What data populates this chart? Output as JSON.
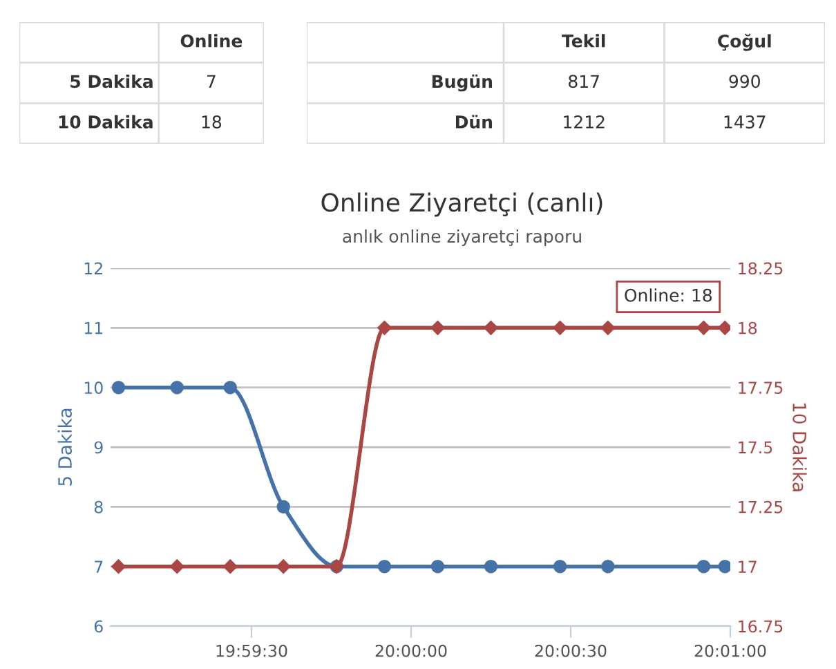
{
  "chart_data": [
    {
      "type": "heatmap",
      "categories": [
        "Online"
      ],
      "y_categories": [
        "5 Dakika",
        "10 Dakika"
      ],
      "cells": [
        [
          7
        ],
        [
          18
        ]
      ],
      "data_labels": true
    },
    {
      "type": "heatmap",
      "categories": [
        "Tekil",
        "Çoğul"
      ],
      "y_categories": [
        "Bugün",
        "Dün"
      ],
      "cells": [
        [
          817,
          990
        ],
        [
          1212,
          1437
        ]
      ],
      "data_labels": true
    },
    {
      "type": "line",
      "title": "Online Ziyaretçi (canlı)",
      "subtitle": "anlık online ziyaretçi raporu",
      "ylabel": "5 Dakika",
      "y2label": "10 Dakika",
      "x": [
        19.984722,
        19.987778,
        19.990556,
        19.993333,
        19.996111,
        19.998611,
        20.001389,
        20.004167,
        20.007778,
        20.010278,
        20.015278,
        20.016389
      ],
      "series": [
        {
          "color": "#4572a7",
          "marker": "circle",
          "values": [
            10,
            10,
            10,
            8,
            7,
            7,
            7,
            7,
            7,
            7,
            7,
            7
          ]
        },
        {
          "color": "#aa4643",
          "marker": "diamond",
          "axis": "y2",
          "values": [
            17,
            17,
            17,
            17,
            17,
            18,
            18,
            18,
            18,
            18,
            18,
            18
          ]
        }
      ],
      "xlim": [
        19.984306,
        20.016667
      ],
      "xticks": [
        {
          "value": 19.991667,
          "label": "19:59:30"
        },
        {
          "value": 20.0,
          "label": "20:00:00"
        },
        {
          "value": 20.008333,
          "label": "20:00:30"
        },
        {
          "value": 20.016667,
          "label": "20:01:00"
        }
      ],
      "ylim": [
        6,
        12
      ],
      "yticks": [
        6,
        7,
        8,
        9,
        10,
        11,
        12
      ],
      "y2lim": [
        16.75,
        18.25
      ],
      "y2ticks": [
        16.75,
        17,
        17.25,
        17.5,
        17.75,
        18,
        18.25
      ],
      "grid": "y",
      "legend": false,
      "annotations": [
        "Online: 18"
      ]
    }
  ]
}
